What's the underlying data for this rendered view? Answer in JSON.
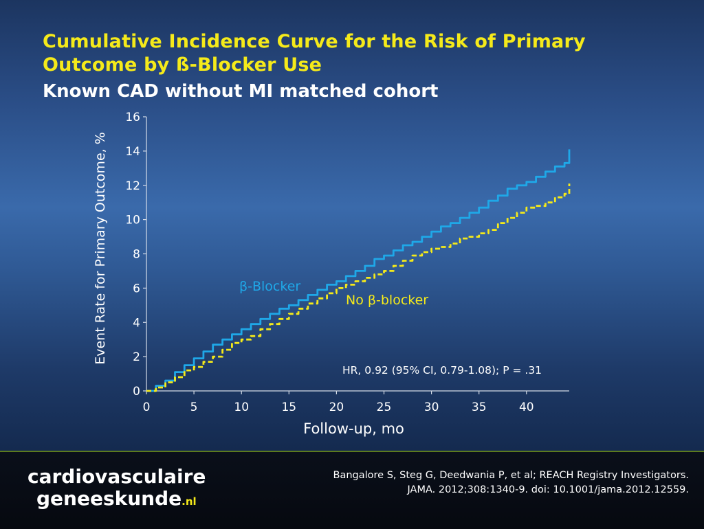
{
  "slide": {
    "title_line1": "Cumulative Incidence Curve for the Risk of Primary",
    "title_line2": "Outcome by ß-Blocker Use",
    "subtitle": "Known CAD without MI matched cohort"
  },
  "chart_data": {
    "type": "line",
    "xlabel": "Follow-up, mo",
    "ylabel": "Event Rate for Primary Outcome, %",
    "xlim": [
      0,
      44.5
    ],
    "ylim": [
      0,
      16
    ],
    "xticks": [
      0,
      5,
      10,
      15,
      20,
      25,
      30,
      35,
      40
    ],
    "yticks": [
      0,
      2,
      4,
      6,
      8,
      10,
      12,
      14,
      16
    ],
    "grid": false,
    "annotation": "HR, 0.92 (95% CI, 0.79-1.08); P = .31",
    "series": [
      {
        "name": "β-Blocker",
        "color": "#1fa8e8",
        "style": "solid",
        "points": [
          [
            0,
            0
          ],
          [
            1,
            0.3
          ],
          [
            2,
            0.6
          ],
          [
            3,
            1.1
          ],
          [
            4,
            1.5
          ],
          [
            5,
            1.9
          ],
          [
            6,
            2.3
          ],
          [
            7,
            2.7
          ],
          [
            8,
            3.0
          ],
          [
            9,
            3.3
          ],
          [
            10,
            3.6
          ],
          [
            11,
            3.9
          ],
          [
            12,
            4.2
          ],
          [
            13,
            4.5
          ],
          [
            14,
            4.8
          ],
          [
            15,
            5.0
          ],
          [
            16,
            5.3
          ],
          [
            17,
            5.6
          ],
          [
            18,
            5.9
          ],
          [
            19,
            6.2
          ],
          [
            20,
            6.4
          ],
          [
            21,
            6.7
          ],
          [
            22,
            7.0
          ],
          [
            23,
            7.3
          ],
          [
            24,
            7.7
          ],
          [
            25,
            7.9
          ],
          [
            26,
            8.2
          ],
          [
            27,
            8.5
          ],
          [
            28,
            8.7
          ],
          [
            29,
            9.0
          ],
          [
            30,
            9.3
          ],
          [
            31,
            9.6
          ],
          [
            32,
            9.8
          ],
          [
            33,
            10.1
          ],
          [
            34,
            10.4
          ],
          [
            35,
            10.7
          ],
          [
            36,
            11.1
          ],
          [
            37,
            11.4
          ],
          [
            38,
            11.8
          ],
          [
            39,
            12.0
          ],
          [
            40,
            12.2
          ],
          [
            41,
            12.5
          ],
          [
            42,
            12.8
          ],
          [
            43,
            13.1
          ],
          [
            44,
            13.3
          ],
          [
            44.5,
            14.1
          ]
        ]
      },
      {
        "name": "No β-blocker",
        "color": "#f5ea1a",
        "style": "dashed",
        "points": [
          [
            0,
            0
          ],
          [
            1,
            0.2
          ],
          [
            2,
            0.5
          ],
          [
            3,
            0.8
          ],
          [
            4,
            1.2
          ],
          [
            5,
            1.4
          ],
          [
            6,
            1.7
          ],
          [
            7,
            2.0
          ],
          [
            8,
            2.4
          ],
          [
            9,
            2.8
          ],
          [
            10,
            3.0
          ],
          [
            11,
            3.2
          ],
          [
            12,
            3.6
          ],
          [
            13,
            3.9
          ],
          [
            14,
            4.2
          ],
          [
            15,
            4.5
          ],
          [
            16,
            4.8
          ],
          [
            17,
            5.1
          ],
          [
            18,
            5.4
          ],
          [
            19,
            5.7
          ],
          [
            20,
            6.0
          ],
          [
            21,
            6.2
          ],
          [
            22,
            6.4
          ],
          [
            23,
            6.6
          ],
          [
            24,
            6.8
          ],
          [
            25,
            7.0
          ],
          [
            26,
            7.3
          ],
          [
            27,
            7.6
          ],
          [
            28,
            7.9
          ],
          [
            29,
            8.1
          ],
          [
            30,
            8.3
          ],
          [
            31,
            8.4
          ],
          [
            32,
            8.6
          ],
          [
            33,
            8.9
          ],
          [
            34,
            9.0
          ],
          [
            35,
            9.2
          ],
          [
            36,
            9.4
          ],
          [
            37,
            9.8
          ],
          [
            38,
            10.1
          ],
          [
            39,
            10.4
          ],
          [
            40,
            10.7
          ],
          [
            41,
            10.8
          ],
          [
            42,
            11.0
          ],
          [
            43,
            11.3
          ],
          [
            44,
            11.5
          ],
          [
            44.5,
            12.1
          ]
        ]
      }
    ]
  },
  "footer": {
    "logo_line1": "cardiovasculaire",
    "logo_line2": "geneeskunde",
    "logo_tld": ".nl",
    "citation_line1": "Bangalore S, Steg G, Deedwania P, et al; REACH Registry Investigators.",
    "citation_line2": "JAMA. 2012;308:1340-9. doi: 10.1001/jama.2012.12559."
  }
}
